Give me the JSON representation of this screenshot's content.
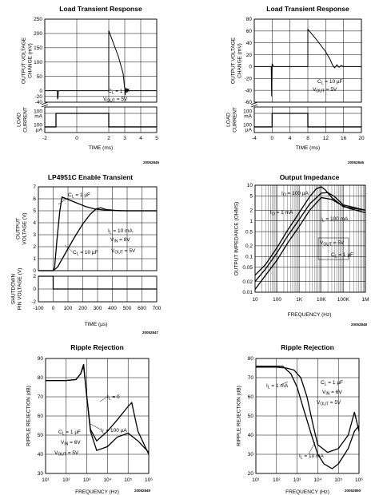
{
  "chart_data": [
    {
      "id": "ltr1",
      "type": "line",
      "title": "Load Transient Response",
      "code": "20052845",
      "xlabel": "TIME (ms)",
      "x_ticks": [
        "-2",
        "0",
        "2",
        "3",
        "4",
        "5"
      ],
      "x_tick_values": [
        -2,
        0,
        2,
        3,
        4,
        5
      ],
      "top_ylabel": [
        "OUTPUT VOLTAGE",
        "CHANGE (mV)"
      ],
      "top_ylim": [
        -40,
        250
      ],
      "top_y_ticks": [
        250,
        200,
        150,
        100,
        50,
        0,
        -20,
        -40
      ],
      "bottom_ylabel": [
        "LOAD",
        "CURRENT"
      ],
      "bottom_y_ticks": [
        "100 mA",
        "100 µA"
      ],
      "annotations": [
        "C_L = 1 µF",
        "V_OUT = 5V"
      ],
      "series": [
        {
          "name": "Output Voltage Change",
          "x": [
            -2.0,
            -1.5,
            -1.3,
            -1.22,
            -1.2,
            -1.17,
            -1.15,
            0.0,
            2.0,
            2.0,
            2.6,
            2.9,
            3.0,
            3.03,
            3.07,
            3.1,
            3.15,
            3.18,
            3.22,
            3.26,
            3.3,
            5.0
          ],
          "y": [
            0,
            0,
            0,
            0,
            -30,
            -22,
            0,
            0,
            0,
            210,
            120,
            60,
            5,
            -15,
            10,
            -5,
            8,
            -3,
            4,
            -1,
            0,
            0
          ]
        },
        {
          "name": "Load Current",
          "x": [
            -2.0,
            -1.3,
            -1.3,
            2.0,
            2.0,
            5.0
          ],
          "y_state": [
            0,
            0,
            1,
            1,
            0,
            0
          ]
        }
      ]
    },
    {
      "id": "ltr2",
      "type": "line",
      "title": "Load Transient Response",
      "code": "20052846",
      "xlabel": "TIME (ms)",
      "x_ticks": [
        "-4",
        "0",
        "4",
        "8",
        "12",
        "16",
        "20"
      ],
      "x_tick_values": [
        -4,
        0,
        4,
        8,
        12,
        16,
        20
      ],
      "top_ylabel": [
        "OUTPUT VOLTAGE",
        "CHANGE (mV)"
      ],
      "top_ylim": [
        -60,
        80
      ],
      "top_y_ticks": [
        80,
        60,
        40,
        20,
        0,
        -20,
        -40,
        -60
      ],
      "bottom_ylabel": [
        "LOAD",
        "CURRENT"
      ],
      "bottom_y_ticks": [
        "100 mA",
        "100 µA"
      ],
      "annotations": [
        "C_L = 10 µF",
        "V_OUT = 5V"
      ],
      "series": [
        {
          "name": "Output Voltage Change",
          "x": [
            -4.0,
            -0.3,
            -0.2,
            -0.1,
            0.0,
            0.3,
            8.0,
            8.0,
            10.0,
            12.0,
            13.0,
            13.5,
            14.0,
            14.5,
            15.0,
            15.5,
            16.0,
            17.0,
            20.0
          ],
          "y": [
            0,
            0,
            0,
            -50,
            5,
            0,
            0,
            63,
            45,
            25,
            12,
            3,
            -2,
            3,
            -1,
            2,
            0,
            0,
            0
          ]
        },
        {
          "name": "Load Current",
          "x": [
            -4.0,
            0.0,
            0.0,
            8.0,
            8.0,
            20.0
          ],
          "y_state": [
            0,
            0,
            1,
            1,
            0,
            0
          ]
        }
      ]
    },
    {
      "id": "enable",
      "type": "line",
      "title": "LP4951C Enable Transient",
      "code": "20052847",
      "xlabel": "TIME (µs)",
      "x_ticks": [
        "-100",
        "0",
        "100",
        "200",
        "300",
        "400",
        "500",
        "600",
        "700"
      ],
      "x_tick_values": [
        -100,
        0,
        100,
        200,
        300,
        400,
        500,
        600,
        700
      ],
      "top_ylabel": [
        "OUTPUT",
        "VOLTAGE (V)"
      ],
      "top_ylim": [
        0,
        7
      ],
      "top_y_ticks": [
        7,
        6,
        5,
        4,
        3,
        2,
        1,
        0
      ],
      "bottom_ylabel": [
        "SHUTDOWN",
        "PIN VOLTAGE (V)"
      ],
      "bottom_y_ticks": [
        2,
        0,
        -2
      ],
      "annotations": [
        "C_L = 1 µF",
        "I_L = 10 mA",
        "V_IN = 8V",
        "C_L = 10 µF",
        "V_OUT = 5V"
      ],
      "series": [
        {
          "name": "C_L = 1 µF",
          "x": [
            -100,
            0,
            10,
            25,
            45,
            60,
            90,
            150,
            220,
            280,
            350,
            500,
            700
          ],
          "y": [
            0,
            0,
            0.3,
            2.5,
            5.0,
            6.15,
            6.0,
            5.7,
            5.35,
            5.15,
            5.05,
            5.0,
            5.0
          ]
        },
        {
          "name": "C_L = 10 µF",
          "x": [
            -100,
            0,
            30,
            80,
            140,
            200,
            250,
            290,
            320,
            360,
            450,
            700
          ],
          "y": [
            0,
            0,
            0.3,
            1.4,
            2.7,
            3.9,
            4.7,
            5.15,
            5.25,
            5.1,
            5.0,
            5.0
          ]
        },
        {
          "name": "Shutdown Pin Voltage",
          "x": [
            -100,
            0,
            0,
            700
          ],
          "y": [
            2,
            2,
            0,
            0
          ]
        }
      ]
    },
    {
      "id": "impedance",
      "type": "line",
      "title": "Output Impedance",
      "code": "20052848",
      "xlabel": "FREQUENCY (Hz)",
      "ylabel": "OUTPUT IMPEDANCE (OHMS)",
      "x_scale": "log",
      "y_scale": "log",
      "xlim": [
        10,
        1000000
      ],
      "ylim": [
        0.01,
        10
      ],
      "x_ticks": [
        "10",
        "100",
        "1K",
        "10K",
        "100K",
        "1M"
      ],
      "x_tick_values": [
        10,
        100,
        1000,
        10000,
        100000,
        1000000
      ],
      "y_ticks": [
        "10",
        "5",
        "2",
        "1",
        "0.5",
        "0.2",
        "0.1",
        "0.05",
        "0.02",
        "0.01"
      ],
      "y_tick_values": [
        10,
        5,
        2,
        1,
        0.5,
        0.2,
        0.1,
        0.05,
        0.02,
        0.01
      ],
      "annotations": [
        "I_O = 100 µA",
        "I_O = 1 mA",
        "I_L = 100 mA",
        "V_OUT = 5V",
        "C_L = 1 µF"
      ],
      "series": [
        {
          "name": "I_O = 100 µA",
          "x": [
            10,
            30,
            100,
            300,
            1000,
            3000,
            6000,
            10000,
            15000,
            30000,
            100000,
            1000000
          ],
          "y": [
            0.03,
            0.06,
            0.18,
            0.55,
            1.7,
            4.8,
            8.0,
            9.0,
            7.5,
            4.5,
            2.5,
            2.0
          ]
        },
        {
          "name": "I_O = 1 mA",
          "x": [
            10,
            30,
            100,
            300,
            1000,
            3000,
            10000,
            20000,
            40000,
            100000,
            1000000
          ],
          "y": [
            0.02,
            0.045,
            0.13,
            0.38,
            1.1,
            3.0,
            6.0,
            6.2,
            4.8,
            2.8,
            2.0
          ]
        },
        {
          "name": "I_L = 100 mA",
          "x": [
            10,
            30,
            100,
            300,
            1000,
            3000,
            10000,
            30000,
            80000,
            200000,
            1000000
          ],
          "y": [
            0.012,
            0.03,
            0.08,
            0.24,
            0.7,
            2.0,
            4.5,
            4.0,
            2.8,
            2.2,
            1.7
          ]
        }
      ]
    },
    {
      "id": "ripple1",
      "type": "line",
      "title": "Ripple Rejection",
      "code": "20052849",
      "xlabel": "FREQUENCY (Hz)",
      "ylabel": "RIPPLE REJECTION (dB)",
      "x_scale": "log",
      "xlim": [
        10,
        1000000
      ],
      "ylim": [
        30,
        90
      ],
      "x_ticks": [
        "10¹",
        "10²",
        "10³",
        "10⁴",
        "10⁵",
        "10⁶"
      ],
      "x_tick_values": [
        10,
        100,
        1000,
        10000,
        100000,
        1000000
      ],
      "y_ticks": [
        90,
        80,
        70,
        60,
        50,
        40,
        30
      ],
      "annotations": [
        "I_L = 0",
        "I_L = 100 µA",
        "C_L = 1 µF",
        "V_IN = 6V",
        "V_OUT = 5V"
      ],
      "series": [
        {
          "name": "I_L = 0",
          "x": [
            10,
            100,
            300,
            500,
            700,
            1000,
            1500,
            3000,
            10000,
            30000,
            100000,
            150000,
            300000,
            1000000
          ],
          "y": [
            78.5,
            78.5,
            79,
            82,
            87,
            70,
            53,
            47,
            52,
            58,
            65,
            67,
            52,
            40
          ]
        },
        {
          "name": "I_L = 100 µA",
          "x": [
            10,
            100,
            300,
            500,
            700,
            1000,
            1500,
            3000,
            10000,
            30000,
            100000,
            300000,
            1000000
          ],
          "y": [
            78.5,
            78.5,
            79,
            82,
            86,
            70,
            52,
            42,
            44,
            49,
            51,
            47,
            41
          ]
        }
      ]
    },
    {
      "id": "ripple2",
      "type": "line",
      "title": "Ripple Rejection",
      "code": "20052850",
      "xlabel": "FREQUENCY (Hz)",
      "ylabel": "RIPPLE REJECTION (dB)",
      "x_scale": "log",
      "xlim": [
        10,
        1000000
      ],
      "ylim": [
        20,
        80
      ],
      "x_ticks": [
        "10¹",
        "10²",
        "10³",
        "10⁴",
        "10⁵",
        "10⁶"
      ],
      "x_tick_values": [
        10,
        100,
        1000,
        10000,
        100000,
        1000000
      ],
      "y_ticks": [
        80,
        70,
        60,
        50,
        40,
        30,
        20
      ],
      "annotations": [
        "I_L = 1 mA",
        "C_L = 1 µF",
        "V_IN = 6V",
        "V_OUT = 5V",
        "I_L = 10 mA"
      ],
      "series": [
        {
          "name": "I_L = 1 mA",
          "x": [
            10,
            100,
            300,
            700,
            1500,
            3000,
            6000,
            10000,
            30000,
            100000,
            300000,
            600000,
            1000000
          ],
          "y": [
            75.5,
            75.5,
            75,
            74,
            70,
            60,
            45,
            35,
            31,
            33,
            40,
            52,
            42
          ]
        },
        {
          "name": "I_L = 10 mA",
          "x": [
            10,
            100,
            200,
            500,
            1000,
            2000,
            5000,
            10000,
            20000,
            50000,
            100000,
            300000,
            600000,
            1000000
          ],
          "y": [
            76,
            76,
            76,
            72,
            65,
            54,
            40,
            30,
            25,
            22.5,
            25,
            33,
            42,
            45
          ]
        }
      ]
    }
  ]
}
